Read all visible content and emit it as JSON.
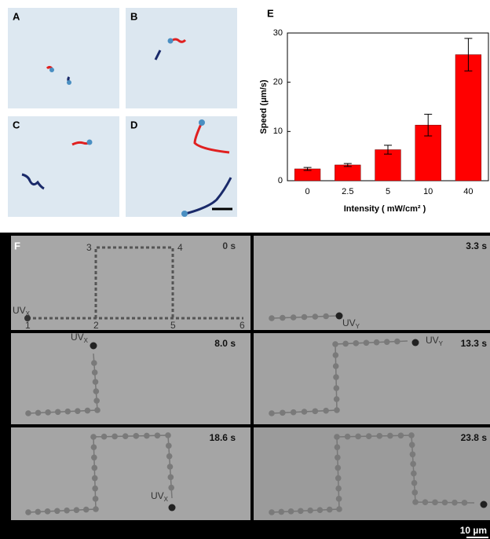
{
  "chart_data": {
    "type": "bar",
    "panel_label": "E",
    "categories": [
      "0",
      "2.5",
      "5",
      "10",
      "40"
    ],
    "values": [
      2.4,
      3.2,
      6.3,
      11.3,
      25.6
    ],
    "errors": [
      0.3,
      0.3,
      0.9,
      2.2,
      3.3
    ],
    "color": "#ff0000",
    "ylim": [
      0,
      30
    ],
    "yticks": [
      0,
      10,
      20,
      30
    ],
    "y_label": "Speed (μm/s)",
    "x_label": "Intensity ( mW/cm² )"
  },
  "panels": {
    "image_labels": [
      "A",
      "B",
      "C",
      "D"
    ],
    "sequence_label": "F",
    "times": [
      "0 s",
      "3.3 s",
      "8.0 s",
      "13.3 s",
      "18.6 s",
      "23.8 s"
    ],
    "points": [
      "1",
      "2",
      "3",
      "4",
      "5",
      "6"
    ],
    "uv": "UV",
    "uv_x": "X",
    "uv_y": "Y",
    "scale_bar": "10 µm"
  }
}
